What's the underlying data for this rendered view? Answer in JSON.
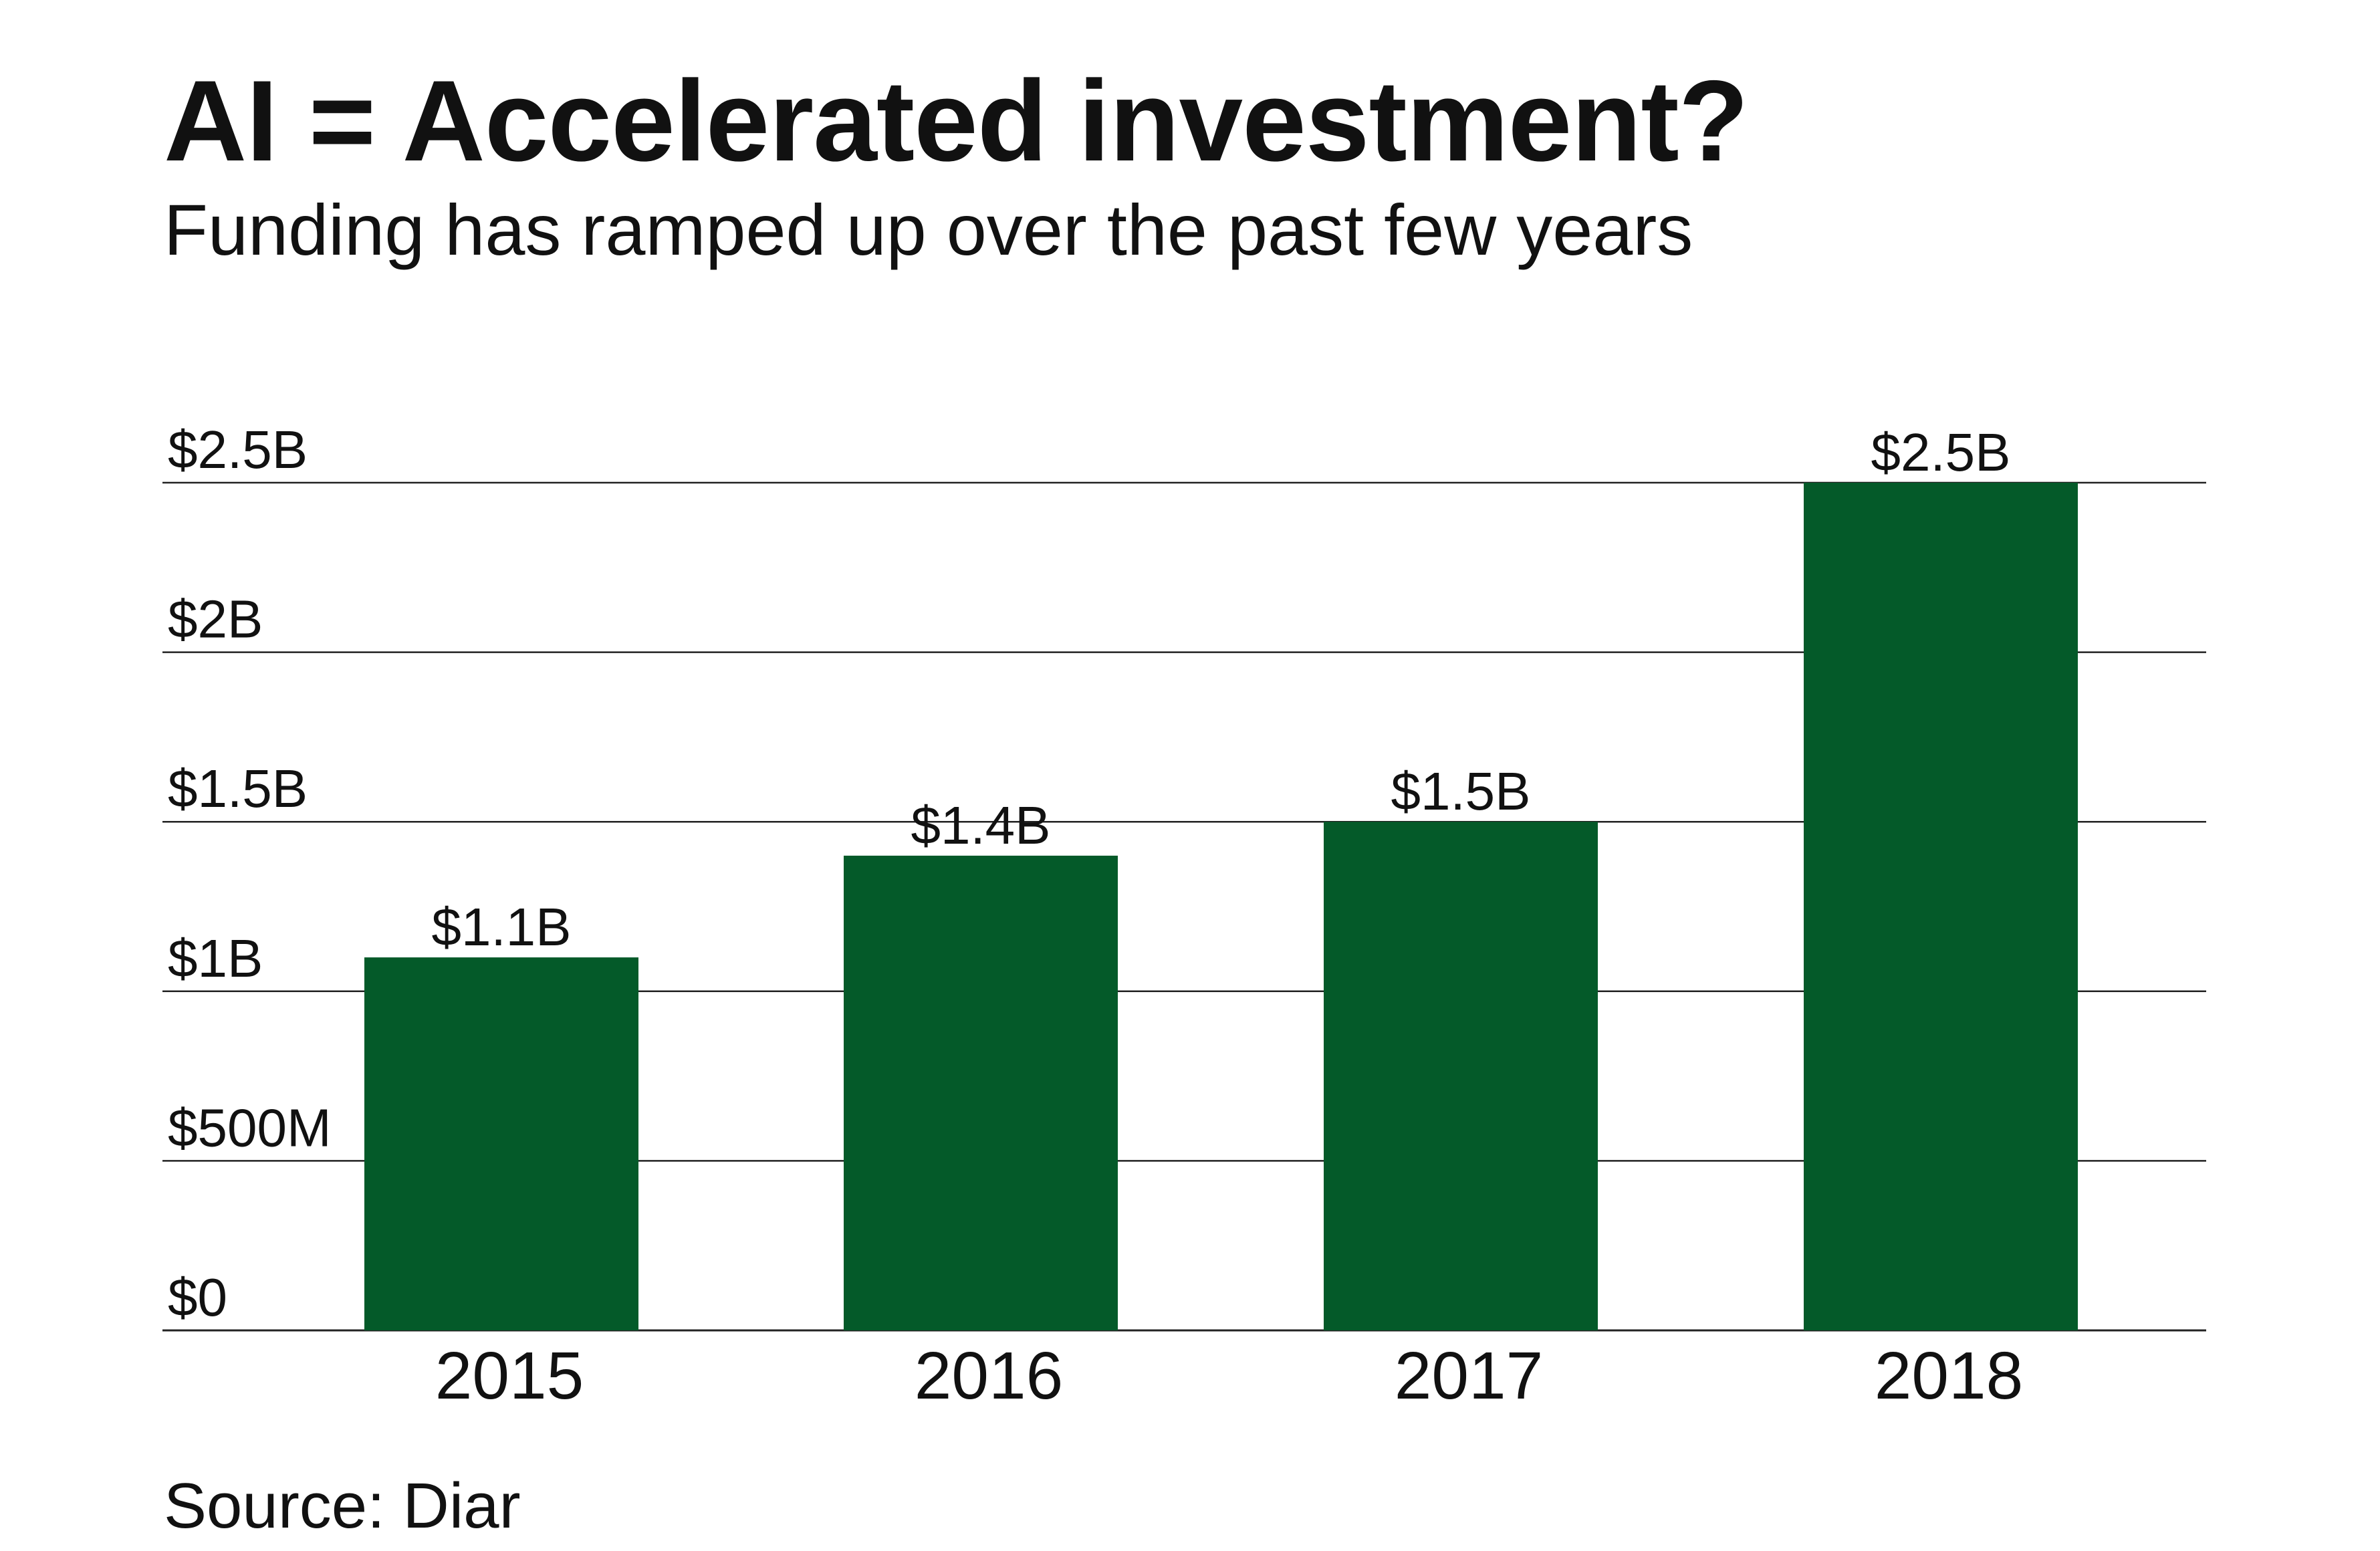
{
  "chart_data": {
    "type": "bar",
    "title": "AI = Accelerated investment?",
    "subtitle": "Funding has ramped up over the past few years",
    "categories": [
      "2015",
      "2016",
      "2017",
      "2018"
    ],
    "values": [
      1.1,
      1.4,
      1.5,
      2.5
    ],
    "value_unit": "billion USD",
    "data_labels": [
      "$1.1B",
      "$1.4B",
      "$1.5B",
      "$2.5B"
    ],
    "yticks": [
      0,
      0.5,
      1,
      1.5,
      2,
      2.5
    ],
    "ytick_labels": [
      "$0",
      "$500M",
      "$1B",
      "$1.5B",
      "$2B",
      "$2.5B"
    ],
    "ylim": [
      0,
      2.5
    ],
    "xlabel": "",
    "ylabel": "",
    "grid": true,
    "legend": "none",
    "source": "Source: Diar",
    "colors": {
      "bar": "#045a29",
      "grid": "#222222",
      "text": "#111111"
    }
  }
}
